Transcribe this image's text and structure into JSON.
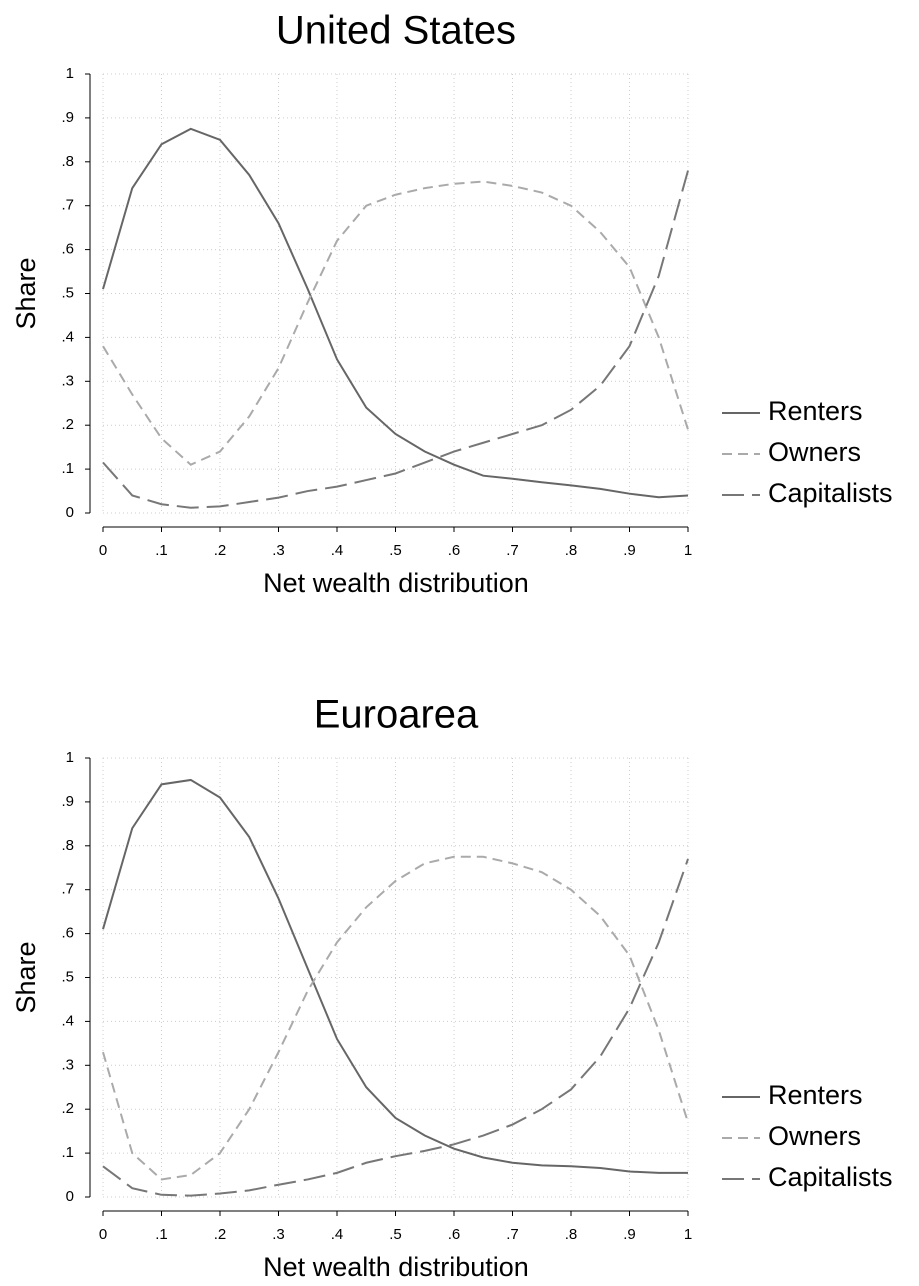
{
  "chart_data": [
    {
      "type": "line",
      "title": "United States",
      "xlabel": "Net wealth distribution",
      "ylabel": "Share",
      "x": [
        0,
        0.05,
        0.1,
        0.15,
        0.2,
        0.25,
        0.3,
        0.35,
        0.4,
        0.45,
        0.5,
        0.55,
        0.6,
        0.65,
        0.7,
        0.75,
        0.8,
        0.85,
        0.9,
        0.95,
        1
      ],
      "series": [
        {
          "name": "Renters",
          "color": "#666666",
          "dash": "solid",
          "values": [
            0.51,
            0.74,
            0.84,
            0.875,
            0.85,
            0.77,
            0.66,
            0.51,
            0.35,
            0.24,
            0.18,
            0.14,
            0.11,
            0.085,
            0.078,
            0.07,
            0.063,
            0.055,
            0.044,
            0.036,
            0.04
          ]
        },
        {
          "name": "Owners",
          "color": "#aaaaaa",
          "dash": "dashed",
          "values": [
            0.38,
            0.27,
            0.17,
            0.11,
            0.14,
            0.22,
            0.33,
            0.48,
            0.62,
            0.7,
            0.725,
            0.74,
            0.75,
            0.755,
            0.745,
            0.73,
            0.7,
            0.64,
            0.56,
            0.4,
            0.19
          ]
        },
        {
          "name": "Capitalists",
          "color": "#777777",
          "dash": "longdash",
          "values": [
            0.115,
            0.04,
            0.02,
            0.012,
            0.015,
            0.025,
            0.035,
            0.05,
            0.06,
            0.075,
            0.09,
            0.115,
            0.14,
            0.16,
            0.18,
            0.2,
            0.235,
            0.29,
            0.38,
            0.54,
            0.78
          ]
        }
      ],
      "xlim": [
        0,
        1
      ],
      "ylim": [
        0,
        1
      ],
      "xticks": [
        0,
        {
          "value": 0.1,
          "label": ".1"
        },
        {
          "value": 0.2,
          "label": ".2"
        },
        {
          "value": 0.3,
          "label": ".3"
        },
        {
          "value": 0.4,
          "label": ".4"
        },
        {
          "value": 0.5,
          "label": ".5"
        },
        {
          "value": 0.6,
          "label": ".6"
        },
        {
          "value": 0.7,
          "label": ".7"
        },
        {
          "value": 0.8,
          "label": ".8"
        },
        {
          "value": 0.9,
          "label": ".9"
        },
        1
      ],
      "yticks": [
        0,
        {
          "value": 0.1,
          "label": ".1"
        },
        {
          "value": 0.2,
          "label": ".2"
        },
        {
          "value": 0.3,
          "label": ".3"
        },
        {
          "value": 0.4,
          "label": ".4"
        },
        {
          "value": 0.5,
          "label": ".5"
        },
        {
          "value": 0.6,
          "label": ".6"
        },
        {
          "value": 0.7,
          "label": ".7"
        },
        {
          "value": 0.8,
          "label": ".8"
        },
        {
          "value": 0.9,
          "label": ".9"
        },
        1
      ],
      "grid": true,
      "legend": "right"
    },
    {
      "type": "line",
      "title": "Euroarea",
      "xlabel": "Net wealth distribution",
      "ylabel": "Share",
      "x": [
        0,
        0.05,
        0.1,
        0.15,
        0.2,
        0.25,
        0.3,
        0.35,
        0.4,
        0.45,
        0.5,
        0.55,
        0.6,
        0.65,
        0.7,
        0.75,
        0.8,
        0.85,
        0.9,
        0.95,
        1
      ],
      "series": [
        {
          "name": "Renters",
          "color": "#666666",
          "dash": "solid",
          "values": [
            0.61,
            0.84,
            0.94,
            0.95,
            0.91,
            0.82,
            0.68,
            0.52,
            0.36,
            0.25,
            0.18,
            0.14,
            0.11,
            0.09,
            0.078,
            0.072,
            0.07,
            0.066,
            0.058,
            0.055,
            0.055
          ]
        },
        {
          "name": "Owners",
          "color": "#aaaaaa",
          "dash": "dashed",
          "values": [
            0.33,
            0.1,
            0.04,
            0.05,
            0.1,
            0.2,
            0.33,
            0.47,
            0.58,
            0.66,
            0.72,
            0.76,
            0.775,
            0.775,
            0.76,
            0.74,
            0.7,
            0.64,
            0.55,
            0.38,
            0.17
          ]
        },
        {
          "name": "Capitalists",
          "color": "#777777",
          "dash": "longdash",
          "values": [
            0.07,
            0.02,
            0.005,
            0.003,
            0.008,
            0.015,
            0.028,
            0.04,
            0.055,
            0.078,
            0.093,
            0.105,
            0.12,
            0.14,
            0.165,
            0.2,
            0.245,
            0.32,
            0.43,
            0.58,
            0.77
          ]
        }
      ],
      "xlim": [
        0,
        1
      ],
      "ylim": [
        0,
        1
      ],
      "xticks": [
        0,
        {
          "value": 0.1,
          "label": ".1"
        },
        {
          "value": 0.2,
          "label": ".2"
        },
        {
          "value": 0.3,
          "label": ".3"
        },
        {
          "value": 0.4,
          "label": ".4"
        },
        {
          "value": 0.5,
          "label": ".5"
        },
        {
          "value": 0.6,
          "label": ".6"
        },
        {
          "value": 0.7,
          "label": ".7"
        },
        {
          "value": 0.8,
          "label": ".8"
        },
        {
          "value": 0.9,
          "label": ".9"
        },
        1
      ],
      "yticks": [
        0,
        {
          "value": 0.1,
          "label": ".1"
        },
        {
          "value": 0.2,
          "label": ".2"
        },
        {
          "value": 0.3,
          "label": ".3"
        },
        {
          "value": 0.4,
          "label": ".4"
        },
        {
          "value": 0.5,
          "label": ".5"
        },
        {
          "value": 0.6,
          "label": ".6"
        },
        {
          "value": 0.7,
          "label": ".7"
        },
        {
          "value": 0.8,
          "label": ".8"
        },
        {
          "value": 0.9,
          "label": ".9"
        },
        1
      ],
      "grid": true,
      "legend": "right"
    }
  ]
}
